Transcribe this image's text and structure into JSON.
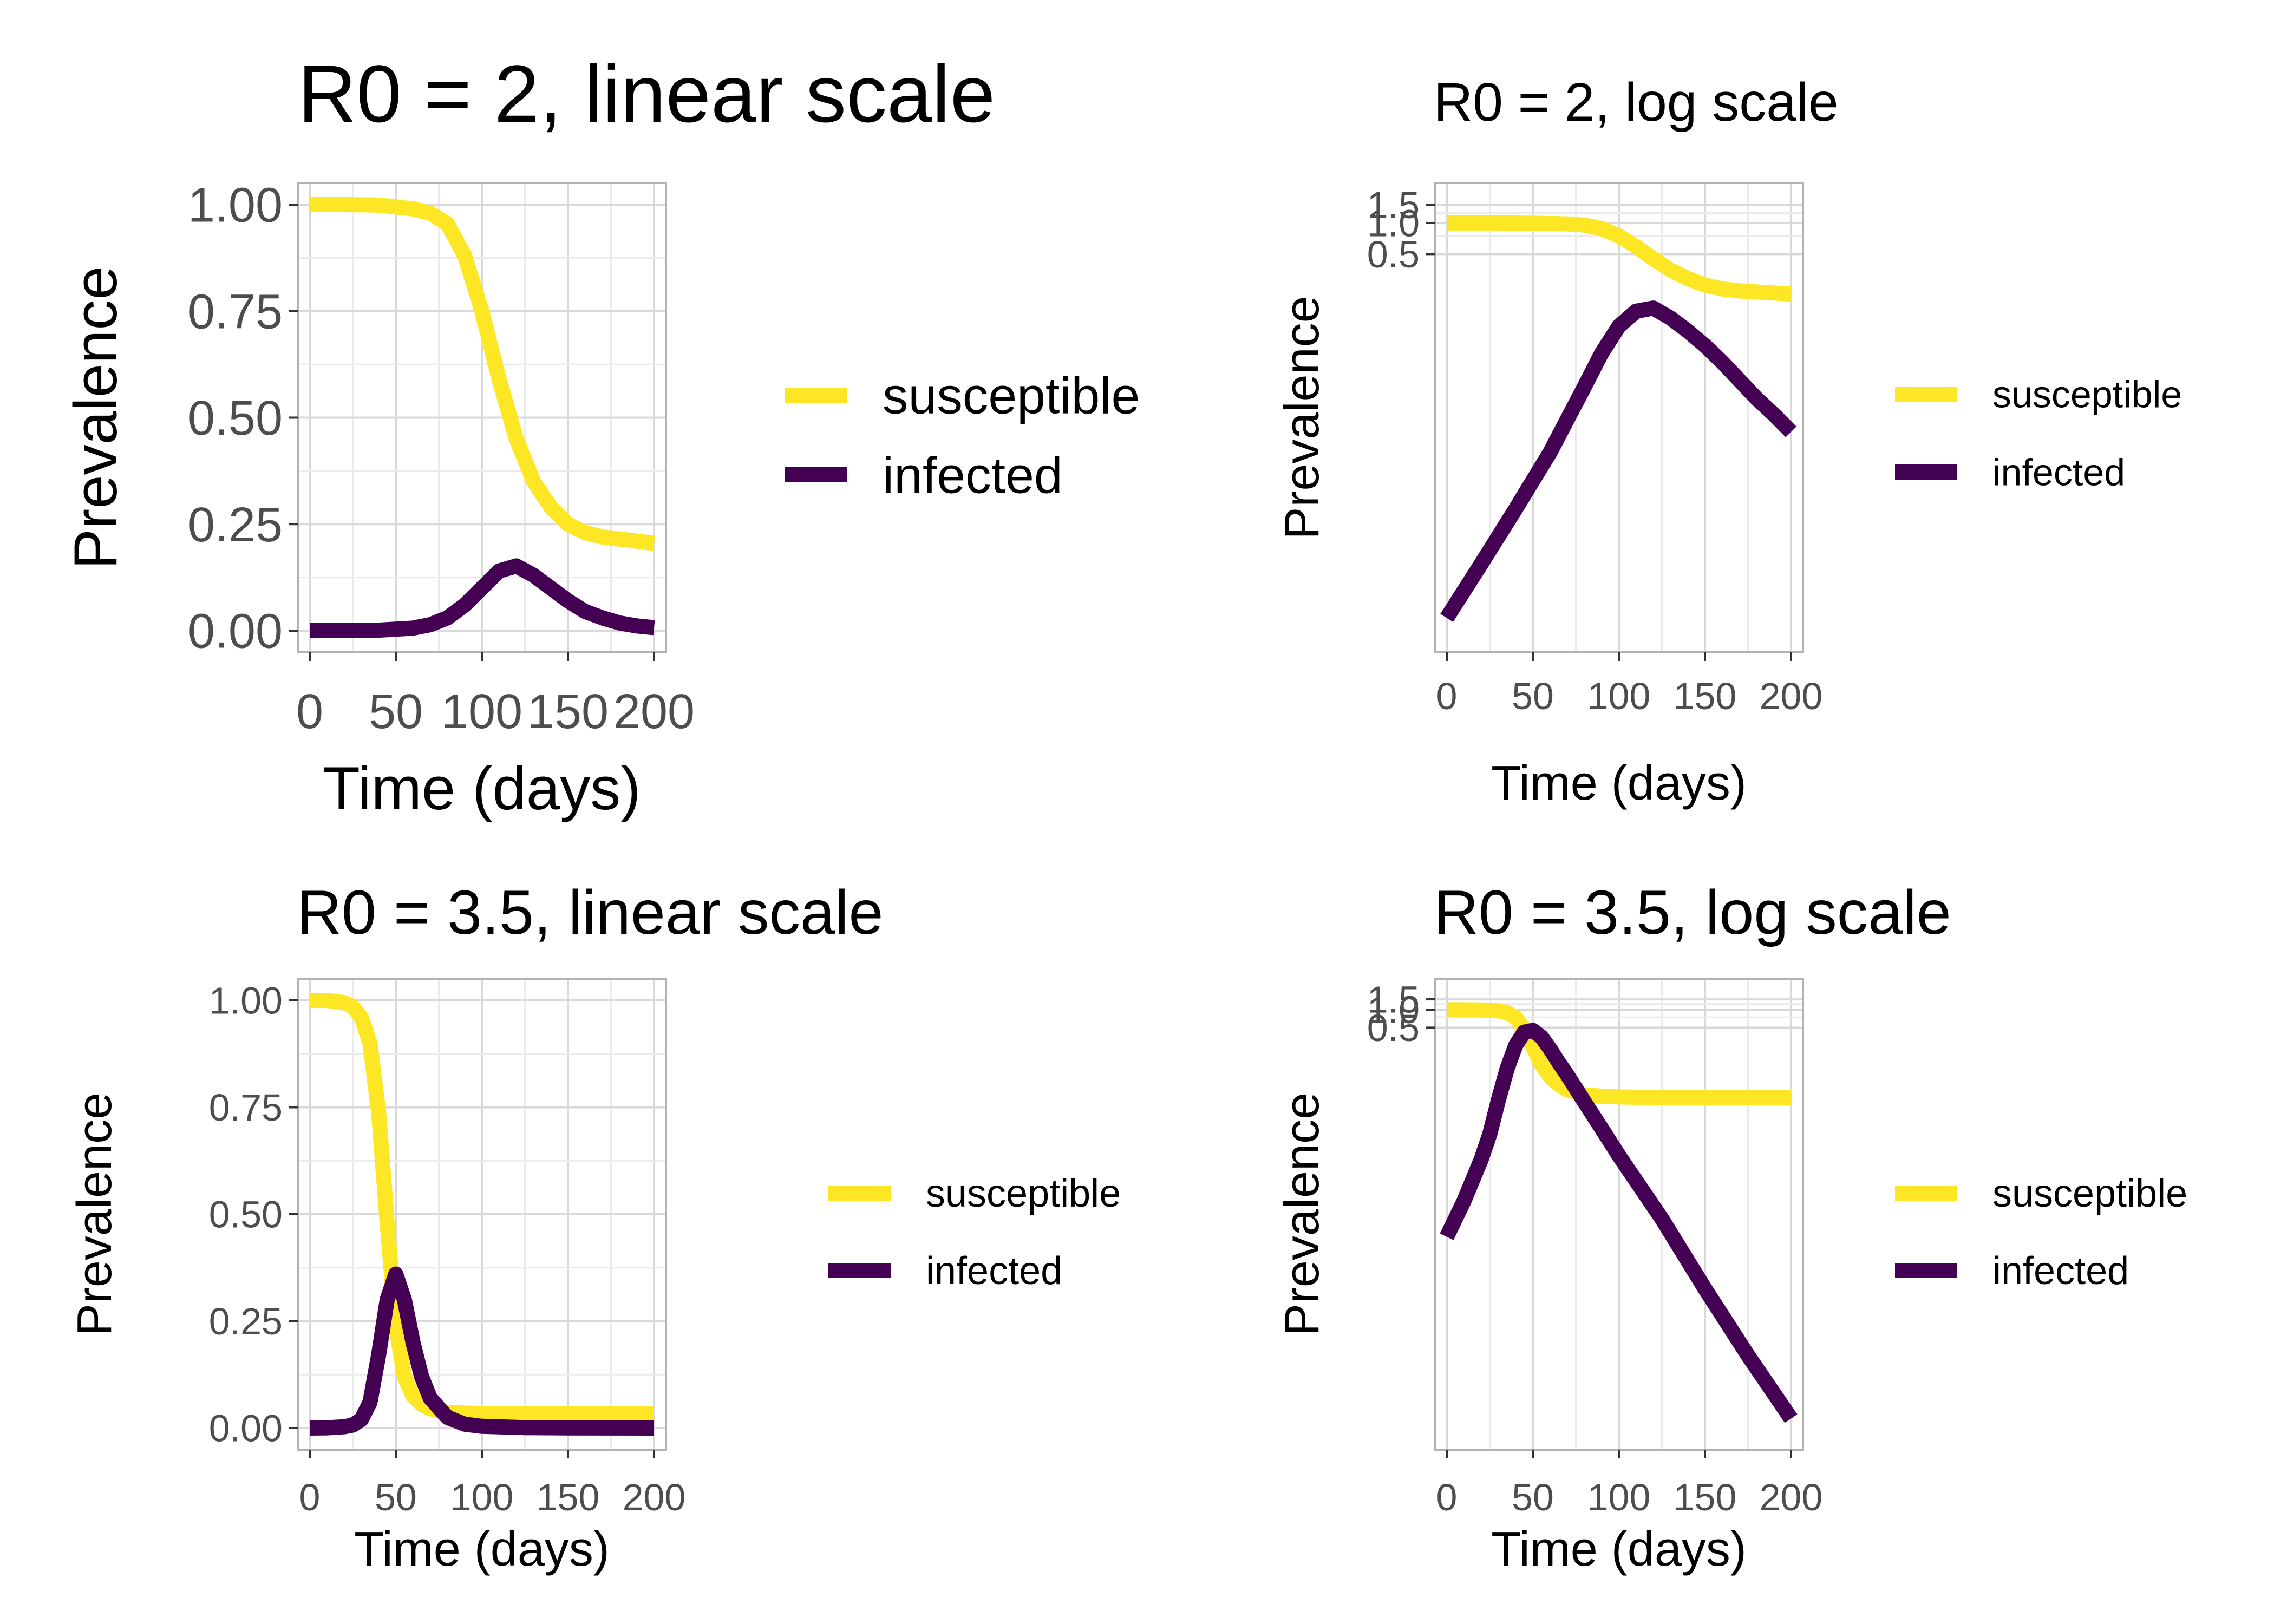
{
  "chart_data": [
    {
      "type": "line",
      "title": "R0 = 2, linear scale",
      "xlabel": "Time (days)",
      "ylabel": "Prevalence",
      "x_scale": "linear",
      "y_scale": "linear",
      "xlim": [
        0,
        200
      ],
      "ylim": [
        0,
        1
      ],
      "x_ticks": [
        "0",
        "50",
        "100",
        "150",
        "200"
      ],
      "y_ticks": [
        "0.00",
        "0.25",
        "0.50",
        "0.75",
        "1.00"
      ],
      "grid": true,
      "legend_position": "right",
      "x": [
        0,
        20,
        40,
        60,
        70,
        80,
        90,
        100,
        110,
        120,
        130,
        140,
        150,
        160,
        170,
        180,
        190,
        200
      ],
      "series": [
        {
          "name": "susceptible",
          "color": "#fde725",
          "values": [
            1.0,
            1.0,
            0.999,
            0.99,
            0.98,
            0.955,
            0.88,
            0.75,
            0.59,
            0.45,
            0.35,
            0.29,
            0.25,
            0.23,
            0.22,
            0.215,
            0.21,
            0.205
          ]
        },
        {
          "name": "infected",
          "color": "#440154",
          "values": [
            0.0,
            0.0003,
            0.0011,
            0.006,
            0.014,
            0.03,
            0.06,
            0.1,
            0.14,
            0.152,
            0.13,
            0.1,
            0.07,
            0.045,
            0.03,
            0.018,
            0.011,
            0.007
          ]
        }
      ]
    },
    {
      "type": "line",
      "title": "R0 = 2, log scale",
      "xlabel": "Time (days)",
      "ylabel": "Prevalence",
      "x_scale": "linear",
      "y_scale": "log",
      "xlim": [
        0,
        200
      ],
      "ylim": [
        0.00012,
        1.6
      ],
      "x_ticks": [
        "0",
        "50",
        "100",
        "150",
        "200"
      ],
      "y_ticks": [
        "0.5",
        "1.0",
        "1.5"
      ],
      "grid": true,
      "legend_position": "right",
      "x": [
        0,
        20,
        40,
        60,
        70,
        80,
        90,
        100,
        110,
        120,
        130,
        140,
        150,
        160,
        170,
        180,
        190,
        200
      ],
      "series": [
        {
          "name": "susceptible",
          "color": "#fde725",
          "values": [
            1.0,
            1.0,
            0.999,
            0.99,
            0.98,
            0.955,
            0.88,
            0.75,
            0.59,
            0.45,
            0.35,
            0.29,
            0.25,
            0.23,
            0.22,
            0.215,
            0.21,
            0.205
          ]
        },
        {
          "name": "infected",
          "color": "#440154",
          "values": [
            0.00015,
            0.0005,
            0.0017,
            0.006,
            0.0125,
            0.026,
            0.055,
            0.1,
            0.14,
            0.15,
            0.12,
            0.09,
            0.065,
            0.045,
            0.03,
            0.02,
            0.014,
            0.0095
          ]
        }
      ]
    },
    {
      "type": "line",
      "title": "R0 = 3.5, linear scale",
      "xlabel": "Time (days)",
      "ylabel": "Prevalence",
      "x_scale": "linear",
      "y_scale": "linear",
      "xlim": [
        0,
        200
      ],
      "ylim": [
        0,
        1
      ],
      "x_ticks": [
        "0",
        "50",
        "100",
        "150",
        "200"
      ],
      "y_ticks": [
        "0.00",
        "0.25",
        "0.50",
        "0.75",
        "1.00"
      ],
      "grid": true,
      "legend_position": "right",
      "x": [
        0,
        10,
        20,
        25,
        30,
        35,
        40,
        45,
        50,
        55,
        60,
        65,
        70,
        80,
        90,
        100,
        125,
        150,
        175,
        200
      ],
      "series": [
        {
          "name": "susceptible",
          "color": "#fde725",
          "values": [
            1.0,
            1.0,
            0.995,
            0.985,
            0.96,
            0.9,
            0.74,
            0.48,
            0.24,
            0.12,
            0.075,
            0.055,
            0.045,
            0.037,
            0.035,
            0.034,
            0.033,
            0.033,
            0.033,
            0.033
          ]
        },
        {
          "name": "infected",
          "color": "#440154",
          "values": [
            0.0,
            0.0005,
            0.003,
            0.007,
            0.02,
            0.06,
            0.17,
            0.3,
            0.36,
            0.3,
            0.2,
            0.12,
            0.07,
            0.025,
            0.009,
            0.004,
            0.001,
            0.0003,
            0.0001,
            0.0
          ]
        }
      ]
    },
    {
      "type": "line",
      "title": "R0 = 3.5, log scale",
      "xlabel": "Time (days)",
      "ylabel": "Prevalence",
      "x_scale": "linear",
      "y_scale": "log",
      "xlim": [
        0,
        200
      ],
      "ylim": [
        1e-07,
        1.6
      ],
      "x_ticks": [
        "0",
        "50",
        "100",
        "150",
        "200"
      ],
      "y_ticks": [
        "0.5",
        "1.0",
        "1.5"
      ],
      "grid": true,
      "legend_position": "right",
      "x": [
        0,
        10,
        20,
        25,
        30,
        35,
        40,
        45,
        50,
        55,
        60,
        65,
        70,
        80,
        90,
        100,
        125,
        150,
        175,
        200
      ],
      "series": [
        {
          "name": "susceptible",
          "color": "#fde725",
          "values": [
            1.0,
            1.0,
            0.995,
            0.985,
            0.96,
            0.9,
            0.74,
            0.48,
            0.24,
            0.12,
            0.075,
            0.055,
            0.045,
            0.037,
            0.035,
            0.034,
            0.033,
            0.033,
            0.033,
            0.033
          ]
        },
        {
          "name": "infected",
          "color": "#440154",
          "values": [
            0.00015,
            0.0006,
            0.003,
            0.008,
            0.03,
            0.1,
            0.25,
            0.42,
            0.45,
            0.35,
            0.22,
            0.13,
            0.08,
            0.028,
            0.01,
            0.0035,
            0.0003,
            2e-05,
            1.5e-06,
            1.3e-07
          ]
        }
      ]
    }
  ]
}
